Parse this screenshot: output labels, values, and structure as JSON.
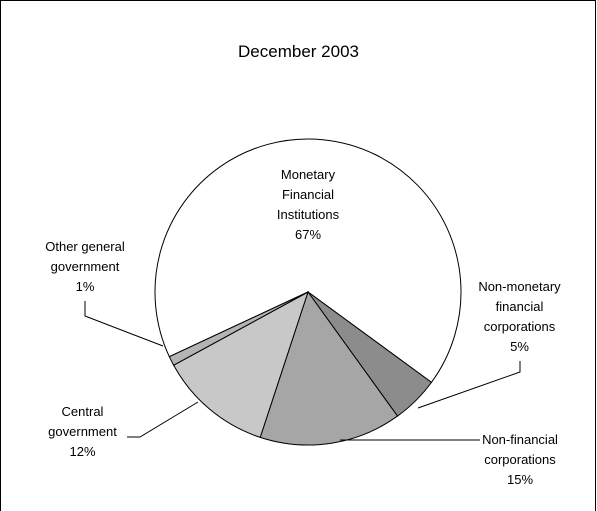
{
  "chart_data": {
    "type": "pie",
    "title": "December 2003",
    "categories": [
      "Monetary Financial Institutions",
      "Non-monetary financial corporations",
      "Non-financial corporations",
      "Central government",
      "Other general government"
    ],
    "values": [
      67,
      5,
      15,
      12,
      1
    ],
    "value_labels": [
      "67%",
      "5%",
      "15%",
      "12%",
      "1%"
    ],
    "colors": [
      "#ffffff",
      "#8c8c8c",
      "#a6a6a6",
      "#c8c8c8",
      "#b4b4b4"
    ]
  }
}
